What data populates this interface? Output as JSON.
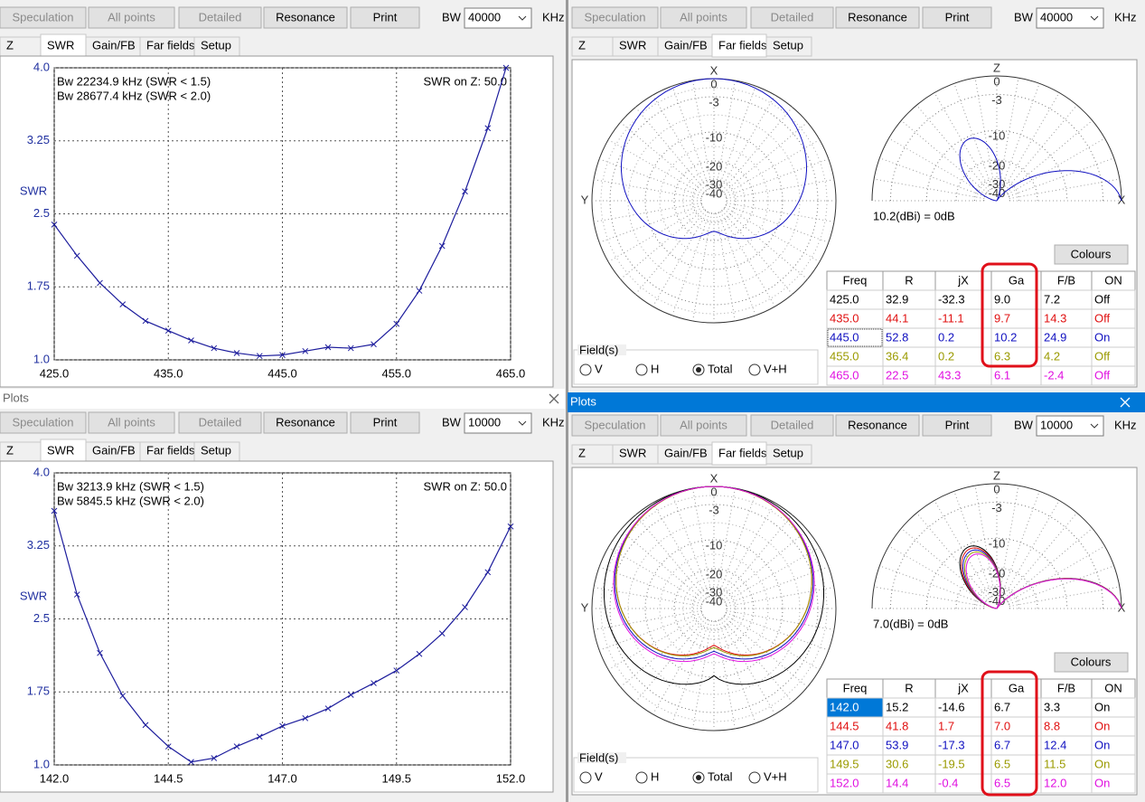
{
  "windows": [
    {
      "toolbar": {
        "buttons": [
          "Speculation",
          "All points",
          "Detailed",
          "Resonance",
          "Print"
        ],
        "enabled": [
          false,
          false,
          false,
          true,
          true
        ],
        "bw_label": "BW",
        "bw_value": "40000",
        "bw_unit": "KHz"
      },
      "tabs": [
        "Z",
        "SWR",
        "Gain/FB",
        "Far fields",
        "Setup"
      ],
      "active_tab": 1,
      "swr": {
        "type": "line",
        "notes": [
          "Bw 22234.9 kHz (SWR < 1.5)",
          "Bw 28677.4 kHz (SWR < 2.0)"
        ],
        "z_note": "SWR on Z: 50.0",
        "y_label": "SWR",
        "color": "#1c1c9c",
        "x": [
          425,
          427,
          429,
          431,
          433,
          435,
          437,
          439,
          441,
          443,
          445,
          447,
          449,
          451,
          453,
          455,
          457,
          459,
          461,
          463,
          464.6
        ],
        "values": [
          2.39,
          2.07,
          1.79,
          1.57,
          1.4,
          1.3,
          1.2,
          1.12,
          1.07,
          1.04,
          1.05,
          1.09,
          1.13,
          1.12,
          1.16,
          1.37,
          1.71,
          2.17,
          2.73,
          3.38,
          4.0
        ],
        "xlim": [
          425,
          465
        ],
        "ylim": [
          1,
          4
        ],
        "xticks": [
          {
            "value": 425,
            "label": "425.0"
          },
          {
            "value": 435,
            "label": "435.0"
          },
          {
            "value": 445,
            "label": "445.0"
          },
          {
            "value": 455,
            "label": "455.0"
          },
          {
            "value": 465,
            "label": "465.0"
          }
        ],
        "yticks": [
          {
            "value": 1,
            "label": "1.0"
          },
          1.75,
          2.5,
          3.25,
          {
            "value": 4,
            "label": "4.0"
          }
        ],
        "grid": true
      }
    },
    {
      "title": "Plots",
      "toolbar": {
        "buttons": [
          "Speculation",
          "All points",
          "Detailed",
          "Resonance",
          "Print"
        ],
        "enabled": [
          false,
          false,
          false,
          true,
          true
        ],
        "bw_label": "BW",
        "bw_value": "10000",
        "bw_unit": "KHz"
      },
      "tabs": [
        "Z",
        "SWR",
        "Gain/FB",
        "Far fields",
        "Setup"
      ],
      "active_tab": 1,
      "swr": {
        "type": "line",
        "notes": [
          "Bw 3213.9 kHz (SWR < 1.5)",
          "Bw 5845.5 kHz (SWR < 2.0)"
        ],
        "z_note": "SWR on Z: 50.0",
        "y_label": "SWR",
        "color": "#1c1c9c",
        "x": [
          142,
          142.5,
          143,
          143.5,
          144,
          144.5,
          145,
          145.5,
          146,
          146.5,
          147,
          147.5,
          148,
          148.5,
          149,
          149.5,
          150,
          150.5,
          151,
          151.5,
          152
        ],
        "values": [
          3.61,
          2.75,
          2.15,
          1.71,
          1.41,
          1.19,
          1.03,
          1.07,
          1.19,
          1.29,
          1.4,
          1.48,
          1.58,
          1.72,
          1.84,
          1.97,
          2.14,
          2.35,
          2.62,
          2.98,
          3.45
        ],
        "xlim": [
          142,
          152
        ],
        "ylim": [
          1,
          4
        ],
        "xticks": [
          {
            "value": 142,
            "label": "142.0"
          },
          144.5,
          {
            "value": 147,
            "label": "147.0"
          },
          149.5,
          {
            "value": 152,
            "label": "152.0"
          }
        ],
        "yticks": [
          {
            "value": 1,
            "label": "1.0"
          },
          1.75,
          2.5,
          3.25,
          {
            "value": 4,
            "label": "4.0"
          }
        ],
        "grid": true
      }
    },
    {
      "toolbar": {
        "buttons": [
          "Speculation",
          "All points",
          "Detailed",
          "Resonance",
          "Print"
        ],
        "enabled": [
          false,
          false,
          false,
          true,
          true
        ],
        "bw_label": "BW",
        "bw_value": "40000",
        "bw_unit": "KHz"
      },
      "tabs": [
        "Z",
        "SWR",
        "Gain/FB",
        "Far fields",
        "Setup"
      ],
      "active_tab": 3,
      "farfield": {
        "azimuth_axes": [
          "X",
          "Y"
        ],
        "elevation_axes": [
          "Z",
          "X"
        ],
        "rings": [
          "0",
          "-3",
          "-10",
          "-20",
          "-30",
          "-40"
        ],
        "gain_note": "10.2(dBi) = 0dB",
        "colours_button": "Colours",
        "table": {
          "header": [
            "Freq",
            "R",
            "jX",
            "Ga",
            "F/B",
            "ON"
          ],
          "rows": [
            [
              "425.0",
              "32.9",
              "-32.3",
              "9.0",
              "7.2",
              "Off"
            ],
            [
              "435.0",
              "44.1",
              "-11.1",
              "9.7",
              "14.3",
              "Off"
            ],
            [
              "445.0",
              "52.8",
              "0.2",
              "10.2",
              "24.9",
              "On"
            ],
            [
              "455.0",
              "36.4",
              "0.2",
              "6.3",
              "4.2",
              "Off"
            ],
            [
              "465.0",
              "22.5",
              "43.3",
              "6.1",
              "-2.4",
              "Off"
            ]
          ],
          "row_colors": [
            "#000000",
            "#e01010",
            "#1010c0",
            "#9a9a00",
            "#e010e0"
          ],
          "focused_row": 2
        },
        "fields": {
          "label": "Field(s)",
          "options": [
            "V",
            "H",
            "Total",
            "V+H"
          ],
          "selected": 2
        }
      }
    },
    {
      "title": "Plots",
      "toolbar": {
        "buttons": [
          "Speculation",
          "All points",
          "Detailed",
          "Resonance",
          "Print"
        ],
        "enabled": [
          false,
          false,
          false,
          true,
          true
        ],
        "bw_label": "BW",
        "bw_value": "10000",
        "bw_unit": "KHz"
      },
      "tabs": [
        "Z",
        "SWR",
        "Gain/FB",
        "Far fields",
        "Setup"
      ],
      "active_tab": 3,
      "farfield": {
        "azimuth_axes": [
          "X",
          "Y"
        ],
        "elevation_axes": [
          "Z",
          "X"
        ],
        "rings": [
          "0",
          "-3",
          "-10",
          "-20",
          "-30",
          "-40"
        ],
        "gain_note": "7.0(dBi) = 0dB",
        "colours_button": "Colours",
        "table": {
          "header": [
            "Freq",
            "R",
            "jX",
            "Ga",
            "F/B",
            "ON"
          ],
          "rows": [
            [
              "142.0",
              "15.2",
              "-14.6",
              "6.7",
              "3.3",
              "On"
            ],
            [
              "144.5",
              "41.8",
              "1.7",
              "7.0",
              "8.8",
              "On"
            ],
            [
              "147.0",
              "53.9",
              "-17.3",
              "6.7",
              "12.4",
              "On"
            ],
            [
              "149.5",
              "30.6",
              "-19.5",
              "6.5",
              "11.5",
              "On"
            ],
            [
              "152.0",
              "14.4",
              "-0.4",
              "6.5",
              "12.0",
              "On"
            ]
          ],
          "row_colors": [
            "#000000",
            "#e01010",
            "#1010c0",
            "#9a9a00",
            "#e010e0"
          ],
          "selected_row": 0
        },
        "fields": {
          "label": "Field(s)",
          "options": [
            "V",
            "H",
            "Total",
            "V+H"
          ],
          "selected": 2
        }
      }
    }
  ]
}
